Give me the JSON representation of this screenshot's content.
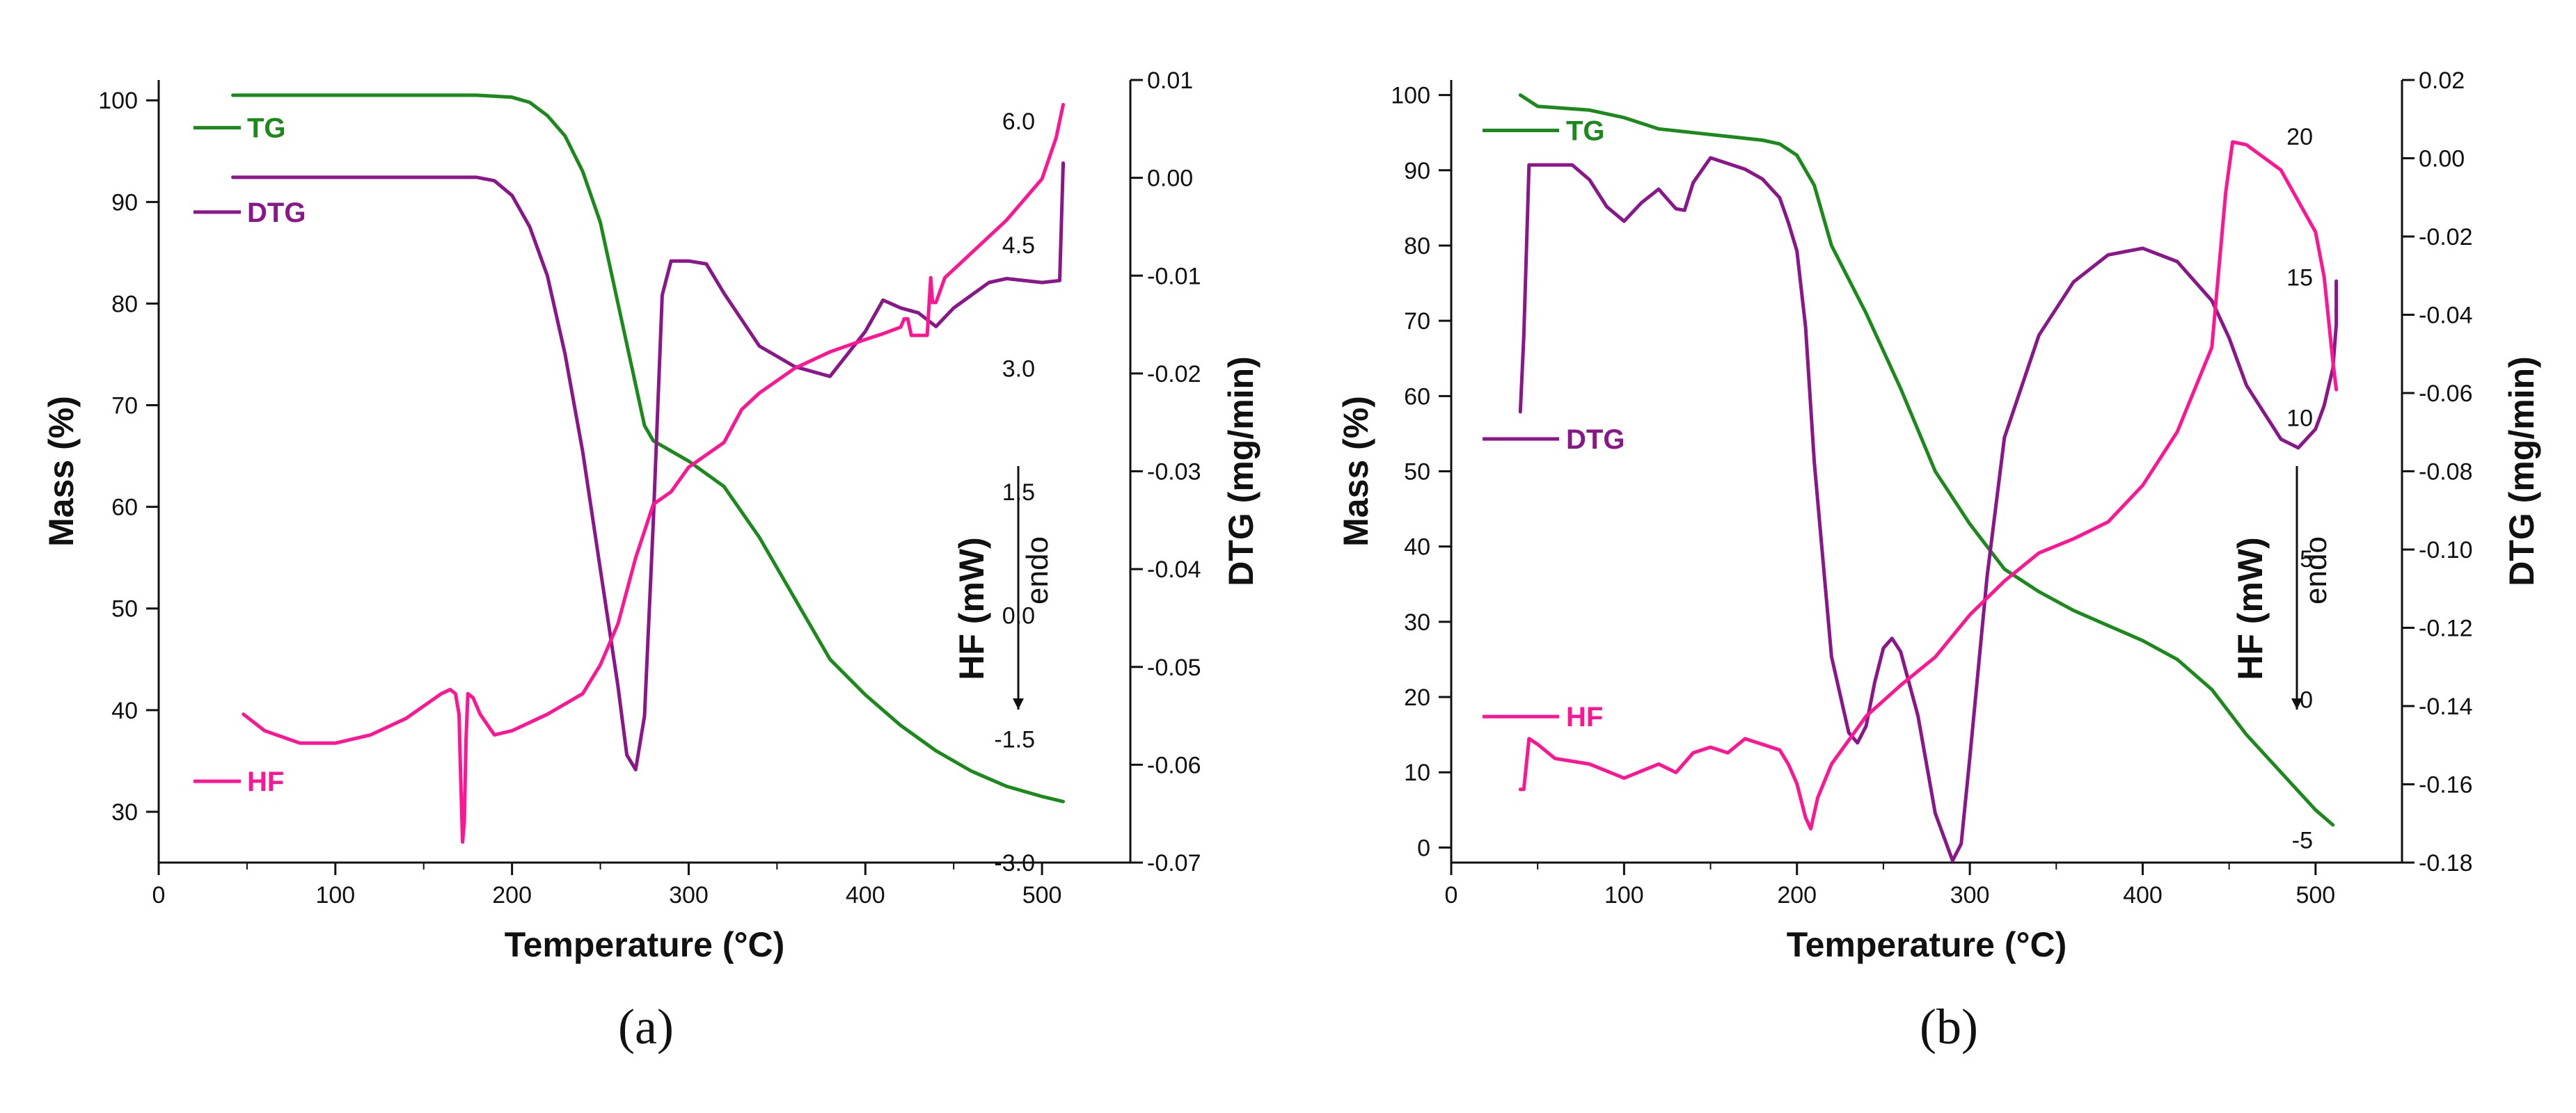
{
  "colors": {
    "TG": "#1a8a1a",
    "DTG": "#8b168b",
    "HF": "#ff1493",
    "axis": "#111111"
  },
  "chart_data": [
    {
      "type": "line",
      "panel_label": "(a)",
      "xlabel": "Temperature (°C)",
      "ylabel_left": "Mass (%)",
      "ylabel_right": "DTG (mg/min)",
      "ylabel_hf": "HF (mW)",
      "endo_label": "endo",
      "xlim": [
        0,
        550
      ],
      "ylim_left": [
        25,
        102
      ],
      "ylim_right": [
        -0.07,
        0.01
      ],
      "ylim_hf": [
        -3.0,
        6.5
      ],
      "xticks": [
        0,
        100,
        200,
        300,
        400,
        500
      ],
      "yticks_left": [
        30,
        40,
        50,
        60,
        70,
        80,
        90,
        100
      ],
      "yticks_right": [
        -0.07,
        -0.06,
        -0.05,
        -0.04,
        -0.03,
        -0.02,
        -0.01,
        0.0,
        0.01
      ],
      "yticks_hf": [
        -3.0,
        -1.5,
        0.0,
        1.5,
        3.0,
        4.5,
        6.0
      ],
      "legend": [
        {
          "name": "TG",
          "level": 97.3
        },
        {
          "name": "DTG",
          "level": 89
        },
        {
          "name": "HF",
          "level": 33
        }
      ],
      "series": [
        {
          "name": "TG",
          "axis": "left",
          "x": [
            42,
            100,
            150,
            180,
            200,
            210,
            220,
            230,
            240,
            250,
            260,
            270,
            275,
            280,
            290,
            300,
            320,
            340,
            360,
            380,
            400,
            420,
            440,
            460,
            480,
            500,
            512
          ],
          "y": [
            100.5,
            100.5,
            100.5,
            100.5,
            100.3,
            99.8,
            98.5,
            96.5,
            93,
            88,
            80,
            72,
            68,
            66.5,
            65.5,
            64.5,
            62,
            57,
            51,
            45,
            41.5,
            38.5,
            36,
            34,
            32.5,
            31.5,
            31
          ]
        },
        {
          "name": "DTG",
          "axis": "right",
          "x": [
            42,
            100,
            150,
            180,
            190,
            200,
            210,
            220,
            230,
            240,
            250,
            260,
            265,
            270,
            275,
            280,
            285,
            290,
            300,
            310,
            320,
            340,
            360,
            380,
            400,
            410,
            420,
            430,
            440,
            450,
            470,
            480,
            500,
            510,
            512,
            512
          ],
          "y": [
            5e-05,
            5e-05,
            5e-05,
            5e-05,
            -0.0003,
            -0.0018,
            -0.005,
            -0.01,
            -0.018,
            -0.028,
            -0.04,
            -0.052,
            -0.059,
            -0.0605,
            -0.055,
            -0.035,
            -0.012,
            -0.0085,
            -0.0085,
            -0.0088,
            -0.0118,
            -0.0172,
            -0.0193,
            -0.0203,
            -0.0157,
            -0.0125,
            -0.0133,
            -0.0138,
            -0.0152,
            -0.0133,
            -0.0107,
            -0.0103,
            -0.0107,
            -0.0105,
            0.0015,
            0.001
          ]
        },
        {
          "name": "HF",
          "axis": "hf",
          "x": [
            48,
            60,
            80,
            100,
            120,
            140,
            150,
            160,
            165,
            168,
            170,
            171,
            172,
            173,
            174,
            175,
            178,
            182,
            190,
            200,
            220,
            240,
            250,
            260,
            270,
            280,
            290,
            300,
            320,
            330,
            340,
            360,
            380,
            400,
            410,
            420,
            422,
            424,
            426,
            430,
            435,
            437,
            438,
            440,
            445,
            450,
            460,
            480,
            500,
            508,
            512
          ],
          "y": [
            -1.2,
            -1.4,
            -1.55,
            -1.55,
            -1.45,
            -1.25,
            -1.1,
            -0.95,
            -0.9,
            -0.95,
            -1.2,
            -2.0,
            -2.75,
            -2.5,
            -1.5,
            -0.95,
            -1.0,
            -1.2,
            -1.45,
            -1.4,
            -1.2,
            -0.95,
            -0.6,
            -0.1,
            0.7,
            1.35,
            1.5,
            1.8,
            2.1,
            2.5,
            2.7,
            3.0,
            3.2,
            3.35,
            3.42,
            3.5,
            3.6,
            3.6,
            3.4,
            3.4,
            3.4,
            4.1,
            3.8,
            3.8,
            4.1,
            4.2,
            4.4,
            4.8,
            5.3,
            5.8,
            6.2
          ]
        }
      ]
    },
    {
      "type": "line",
      "panel_label": "(b)",
      "xlabel": "Temperature (°C)",
      "ylabel_left": "Mass (%)",
      "ylabel_right": "DTG (mg/min)",
      "ylabel_hf": "HF (mW)",
      "endo_label": "endo",
      "xlim": [
        0,
        550
      ],
      "ylim_left": [
        -2,
        102
      ],
      "ylim_right": [
        -0.18,
        0.02
      ],
      "ylim_hf": [
        -5.8,
        22.0
      ],
      "xticks": [
        0,
        100,
        200,
        300,
        400,
        500
      ],
      "yticks_left": [
        0,
        10,
        20,
        30,
        40,
        50,
        60,
        70,
        80,
        90,
        100
      ],
      "yticks_right": [
        -0.18,
        -0.16,
        -0.14,
        -0.12,
        -0.1,
        -0.08,
        -0.06,
        -0.04,
        -0.02,
        0.0,
        0.02
      ],
      "yticks_hf": [
        -5,
        0,
        5,
        10,
        15,
        20
      ],
      "legend": [
        {
          "name": "TG",
          "level": 95.3
        },
        {
          "name": "DTG",
          "level": 54.3
        },
        {
          "name": "HF",
          "level": 17.4
        }
      ],
      "series": [
        {
          "name": "TG",
          "axis": "left",
          "x": [
            40,
            50,
            80,
            100,
            120,
            140,
            160,
            180,
            190,
            200,
            210,
            220,
            240,
            260,
            280,
            300,
            320,
            340,
            360,
            380,
            400,
            420,
            440,
            460,
            480,
            500,
            510
          ],
          "y": [
            100,
            98.5,
            98,
            97,
            95.5,
            95,
            94.5,
            94,
            93.5,
            92,
            88,
            80,
            71,
            61,
            50,
            43,
            37,
            34,
            31.5,
            29.5,
            27.5,
            25,
            21,
            15,
            10,
            5,
            3
          ]
        },
        {
          "name": "DTG",
          "axis": "right",
          "x": [
            40,
            42,
            45,
            50,
            70,
            80,
            90,
            100,
            110,
            120,
            130,
            135,
            140,
            150,
            170,
            180,
            190,
            195,
            200,
            205,
            210,
            220,
            230,
            235,
            240,
            245,
            250,
            255,
            260,
            270,
            280,
            290,
            295,
            300,
            310,
            320,
            340,
            360,
            380,
            400,
            420,
            440,
            450,
            460,
            470,
            480,
            490,
            500,
            505,
            510,
            512,
            512
          ],
          "y": [
            -0.0648,
            -0.0454,
            -0.0017,
            -0.0017,
            -0.0017,
            -0.0055,
            -0.0124,
            -0.0161,
            -0.0114,
            -0.0079,
            -0.0129,
            -0.0133,
            -0.0062,
            0.0001,
            -0.0028,
            -0.0053,
            -0.0101,
            -0.0164,
            -0.0237,
            -0.0431,
            -0.0776,
            -0.1274,
            -0.1468,
            -0.1494,
            -0.1451,
            -0.1339,
            -0.1252,
            -0.1227,
            -0.1261,
            -0.1425,
            -0.1674,
            -0.1795,
            -0.1752,
            -0.1532,
            -0.1069,
            -0.0714,
            -0.0452,
            -0.0316,
            -0.0247,
            -0.023,
            -0.0264,
            -0.0364,
            -0.0459,
            -0.058,
            -0.0649,
            -0.0718,
            -0.074,
            -0.0692,
            -0.0632,
            -0.0537,
            -0.0424,
            -0.0314
          ]
        },
        {
          "name": "HF",
          "axis": "hf",
          "x": [
            40,
            42,
            45,
            50,
            60,
            80,
            100,
            120,
            130,
            140,
            150,
            160,
            170,
            175,
            180,
            190,
            195,
            200,
            205,
            208,
            212,
            220,
            240,
            260,
            280,
            300,
            320,
            340,
            360,
            380,
            400,
            420,
            440,
            448,
            452,
            460,
            480,
            500,
            505,
            510,
            512
          ],
          "y": [
            -3.2,
            -3.2,
            -1.4,
            -1.6,
            -2.1,
            -2.3,
            -2.8,
            -2.3,
            -2.6,
            -1.9,
            -1.7,
            -1.9,
            -1.4,
            -1.5,
            -1.6,
            -1.8,
            -2.3,
            -3.0,
            -4.2,
            -4.6,
            -3.5,
            -2.3,
            -0.6,
            0.5,
            1.5,
            3.0,
            4.2,
            5.2,
            5.7,
            6.3,
            7.6,
            9.5,
            12.5,
            18.0,
            19.8,
            19.7,
            18.8,
            16.6,
            15.0,
            12.0,
            11.0
          ]
        }
      ]
    }
  ]
}
